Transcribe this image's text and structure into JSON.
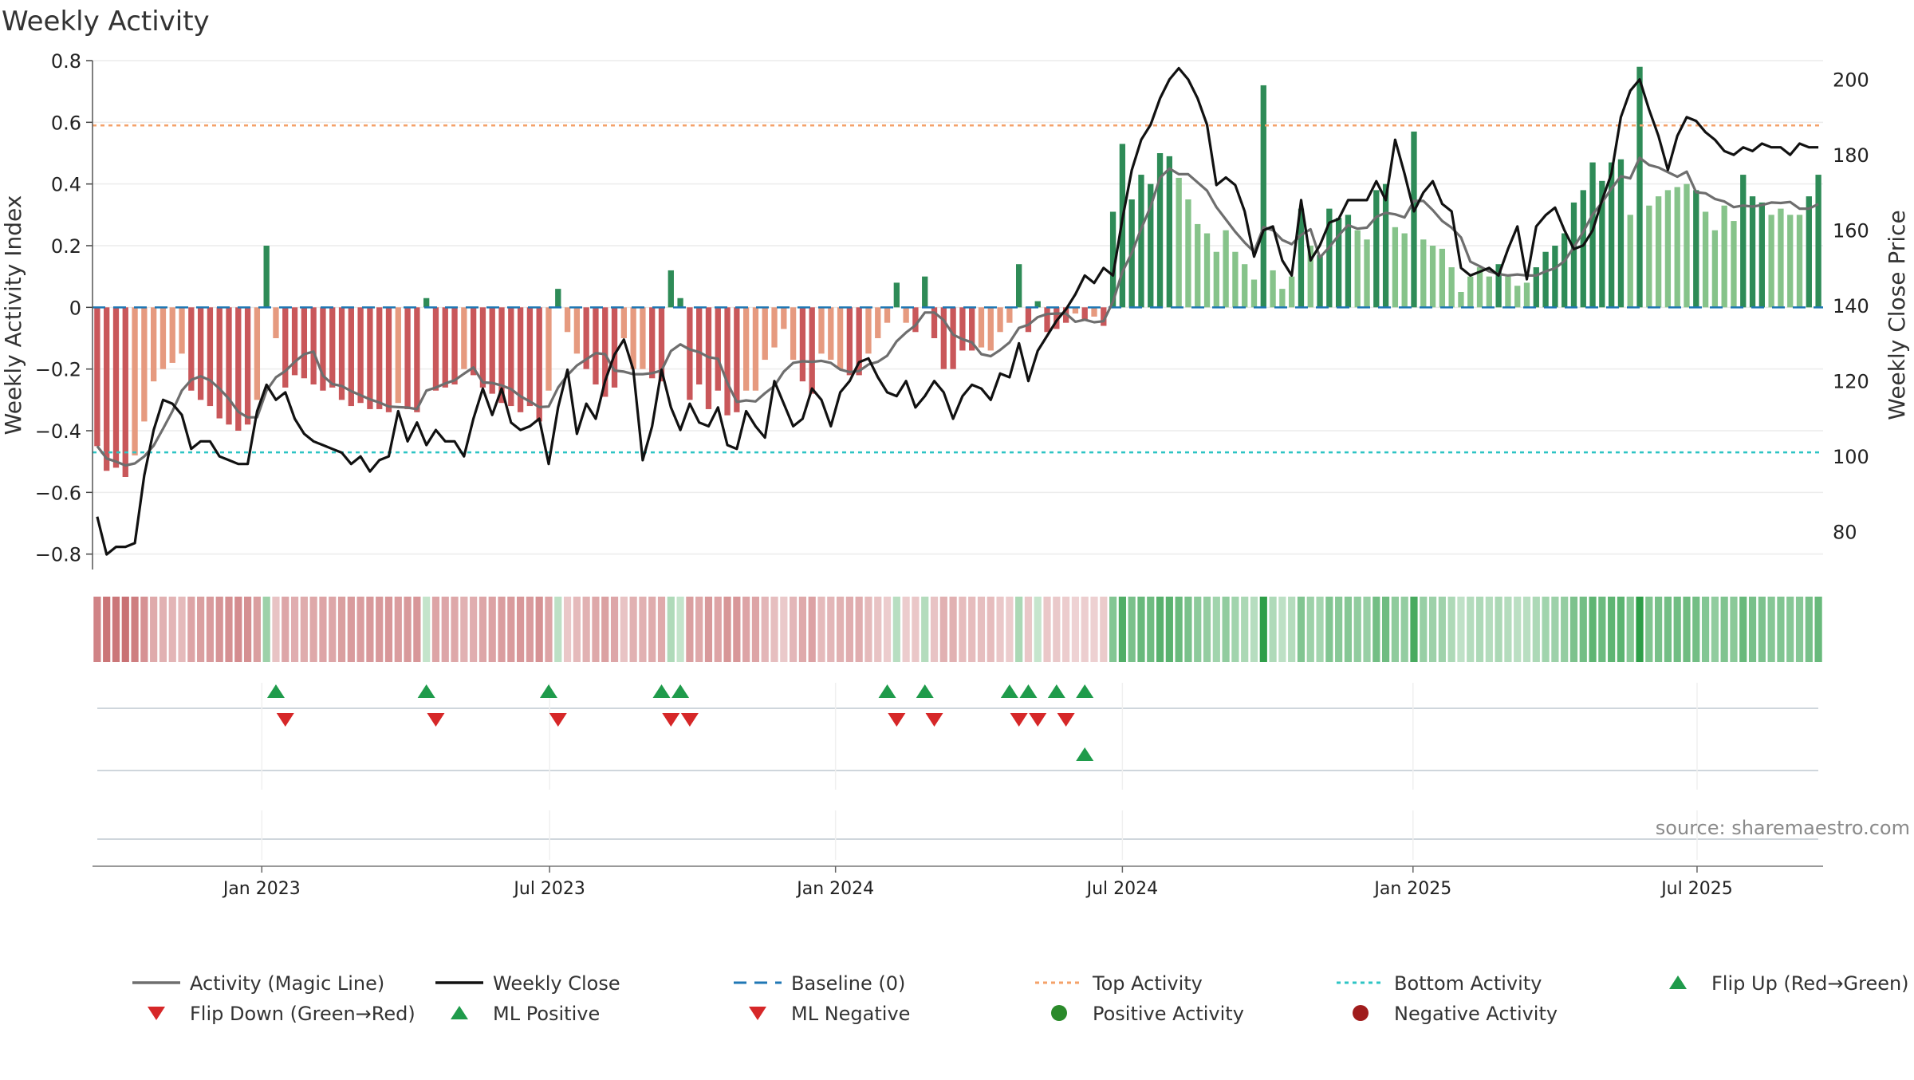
{
  "title": "Weekly Activity",
  "source_note": "source: sharemaestro.com",
  "colors": {
    "bar_pos_dark": "#2e8b57",
    "bar_pos_light": "#86c38a",
    "bar_neg_dark": "#c9575a",
    "bar_neg_light": "#e69a7f",
    "magic_line": "#6e6e6e",
    "close_line": "#111111",
    "baseline": "#1f77b4",
    "top_line": "#f4a26a",
    "bottom_line": "#2ec4c4",
    "flip_up": "#1f9b4b",
    "flip_down": "#d62728",
    "pos_dot": "#2a8a2a",
    "neg_dot": "#a01c1c",
    "grid": "#ececec",
    "track_line": "#cfd6dc"
  },
  "chart_data": {
    "type": "bar",
    "weeks": 184,
    "start_date": "2022-10-24",
    "left_axis": {
      "label": "Weekly Activity Index",
      "range": [
        -0.85,
        0.8
      ],
      "ticks": [
        "0.8",
        "0.6",
        "0.4",
        "0.2",
        "0",
        "−0.2",
        "−0.4",
        "−0.6",
        "−0.8"
      ],
      "tick_values": [
        0.8,
        0.6,
        0.4,
        0.2,
        0,
        -0.2,
        -0.4,
        -0.6,
        -0.8
      ]
    },
    "right_axis": {
      "label": "Weekly Close Price",
      "range": [
        70,
        205
      ],
      "ticks": [
        "200",
        "180",
        "160",
        "140",
        "120",
        "100",
        "80"
      ],
      "tick_values": [
        200,
        180,
        160,
        140,
        120,
        100,
        80
      ]
    },
    "x_axis": {
      "ticks": [
        "Jan 2023",
        "Jul 2023",
        "Jan 2024",
        "Jul 2024",
        "Jan 2025",
        "Jul 2025"
      ],
      "tick_weeks": [
        18,
        48.6,
        79,
        109.5,
        140.4,
        170.6
      ]
    },
    "top_activity": 0.59,
    "bottom_activity": -0.47,
    "baseline": 0,
    "activity_anchors": [
      [
        0,
        -0.45
      ],
      [
        1,
        -0.53
      ],
      [
        2,
        -0.52
      ],
      [
        3,
        -0.55
      ],
      [
        4,
        -0.48
      ],
      [
        5,
        -0.37
      ],
      [
        6,
        -0.24
      ],
      [
        7,
        -0.2
      ],
      [
        8,
        -0.18
      ],
      [
        9,
        -0.15
      ],
      [
        10,
        -0.27
      ],
      [
        11,
        -0.3
      ],
      [
        12,
        -0.32
      ],
      [
        13,
        -0.36
      ],
      [
        14,
        -0.38
      ],
      [
        15,
        -0.4
      ],
      [
        16,
        -0.38
      ],
      [
        17,
        -0.3
      ],
      [
        18,
        0.2
      ],
      [
        19,
        -0.1
      ],
      [
        20,
        -0.26
      ],
      [
        21,
        -0.22
      ],
      [
        22,
        -0.23
      ],
      [
        23,
        -0.25
      ],
      [
        24,
        -0.27
      ],
      [
        25,
        -0.26
      ],
      [
        26,
        -0.3
      ],
      [
        27,
        -0.32
      ],
      [
        28,
        -0.31
      ],
      [
        29,
        -0.33
      ],
      [
        30,
        -0.33
      ],
      [
        31,
        -0.34
      ],
      [
        32,
        -0.31
      ],
      [
        33,
        -0.33
      ],
      [
        34,
        -0.34
      ],
      [
        35,
        0.03
      ],
      [
        36,
        -0.27
      ],
      [
        37,
        -0.26
      ],
      [
        38,
        -0.25
      ],
      [
        39,
        -0.2
      ],
      [
        40,
        -0.22
      ],
      [
        41,
        -0.26
      ],
      [
        42,
        -0.28
      ],
      [
        43,
        -0.31
      ],
      [
        44,
        -0.32
      ],
      [
        45,
        -0.34
      ],
      [
        46,
        -0.32
      ],
      [
        47,
        -0.37
      ],
      [
        48,
        -0.27
      ],
      [
        49,
        0.06
      ],
      [
        50,
        -0.08
      ],
      [
        51,
        -0.15
      ],
      [
        52,
        -0.2
      ],
      [
        53,
        -0.25
      ],
      [
        54,
        -0.29
      ],
      [
        55,
        -0.26
      ],
      [
        56,
        -0.1
      ],
      [
        57,
        -0.2
      ],
      [
        58,
        -0.2
      ],
      [
        59,
        -0.23
      ],
      [
        60,
        -0.24
      ],
      [
        61,
        0.12
      ],
      [
        62,
        0.03
      ],
      [
        63,
        -0.3
      ],
      [
        64,
        -0.25
      ],
      [
        65,
        -0.33
      ],
      [
        66,
        -0.27
      ],
      [
        67,
        -0.35
      ],
      [
        68,
        -0.34
      ],
      [
        69,
        -0.27
      ],
      [
        70,
        -0.27
      ],
      [
        71,
        -0.17
      ],
      [
        72,
        -0.13
      ],
      [
        73,
        -0.07
      ],
      [
        74,
        -0.17
      ],
      [
        75,
        -0.24
      ],
      [
        76,
        -0.28
      ],
      [
        77,
        -0.15
      ],
      [
        78,
        -0.17
      ],
      [
        79,
        -0.2
      ],
      [
        80,
        -0.22
      ],
      [
        81,
        -0.22
      ],
      [
        82,
        -0.15
      ],
      [
        83,
        -0.1
      ],
      [
        84,
        -0.05
      ],
      [
        85,
        0.08
      ],
      [
        86,
        -0.05
      ],
      [
        87,
        -0.08
      ],
      [
        88,
        0.1
      ],
      [
        89,
        -0.1
      ],
      [
        90,
        -0.2
      ],
      [
        91,
        -0.2
      ],
      [
        92,
        -0.14
      ],
      [
        93,
        -0.14
      ],
      [
        94,
        -0.13
      ],
      [
        95,
        -0.14
      ],
      [
        96,
        -0.08
      ],
      [
        97,
        -0.05
      ],
      [
        98,
        0.14
      ],
      [
        99,
        -0.08
      ],
      [
        100,
        0.02
      ],
      [
        101,
        -0.08
      ],
      [
        102,
        -0.07
      ],
      [
        103,
        -0.05
      ],
      [
        104,
        -0.02
      ],
      [
        105,
        -0.04
      ],
      [
        106,
        -0.03
      ],
      [
        107,
        -0.06
      ],
      [
        108,
        0.31
      ],
      [
        109,
        0.53
      ],
      [
        110,
        0.35
      ],
      [
        111,
        0.43
      ],
      [
        112,
        0.4
      ],
      [
        113,
        0.5
      ],
      [
        114,
        0.49
      ],
      [
        115,
        0.42
      ],
      [
        116,
        0.35
      ],
      [
        117,
        0.27
      ],
      [
        118,
        0.24
      ],
      [
        119,
        0.18
      ],
      [
        120,
        0.25
      ],
      [
        121,
        0.18
      ],
      [
        122,
        0.14
      ],
      [
        123,
        0.09
      ],
      [
        124,
        0.72
      ],
      [
        125,
        0.12
      ],
      [
        126,
        0.06
      ],
      [
        127,
        0.1
      ],
      [
        128,
        0.32
      ],
      [
        129,
        0.2
      ],
      [
        130,
        0.17
      ],
      [
        131,
        0.32
      ],
      [
        132,
        0.29
      ],
      [
        133,
        0.3
      ],
      [
        134,
        0.25
      ],
      [
        135,
        0.22
      ],
      [
        136,
        0.38
      ],
      [
        137,
        0.4
      ],
      [
        138,
        0.26
      ],
      [
        139,
        0.24
      ],
      [
        140,
        0.57
      ],
      [
        141,
        0.22
      ],
      [
        142,
        0.2
      ],
      [
        143,
        0.19
      ],
      [
        144,
        0.13
      ],
      [
        145,
        0.05
      ],
      [
        146,
        0.1
      ],
      [
        147,
        0.13
      ],
      [
        148,
        0.1
      ],
      [
        149,
        0.14
      ],
      [
        150,
        0.1
      ],
      [
        151,
        0.07
      ],
      [
        152,
        0.08
      ],
      [
        153,
        0.13
      ],
      [
        154,
        0.18
      ],
      [
        155,
        0.2
      ],
      [
        156,
        0.24
      ],
      [
        157,
        0.34
      ],
      [
        158,
        0.38
      ],
      [
        159,
        0.47
      ],
      [
        160,
        0.41
      ],
      [
        161,
        0.47
      ],
      [
        162,
        0.48
      ],
      [
        163,
        0.3
      ],
      [
        164,
        0.78
      ],
      [
        165,
        0.33
      ],
      [
        166,
        0.36
      ],
      [
        167,
        0.38
      ],
      [
        168,
        0.39
      ],
      [
        169,
        0.4
      ],
      [
        170,
        0.38
      ],
      [
        171,
        0.31
      ],
      [
        172,
        0.25
      ],
      [
        173,
        0.33
      ],
      [
        174,
        0.28
      ],
      [
        175,
        0.43
      ],
      [
        176,
        0.36
      ],
      [
        177,
        0.34
      ],
      [
        178,
        0.3
      ],
      [
        179,
        0.32
      ],
      [
        180,
        0.3
      ],
      [
        181,
        0.3
      ],
      [
        182,
        0.36
      ],
      [
        183,
        0.43
      ]
    ],
    "close_anchors": [
      [
        0,
        84
      ],
      [
        1,
        74
      ],
      [
        2,
        76
      ],
      [
        3,
        76
      ],
      [
        4,
        77
      ],
      [
        5,
        95
      ],
      [
        6,
        107
      ],
      [
        7,
        115
      ],
      [
        8,
        114
      ],
      [
        9,
        111
      ],
      [
        10,
        102
      ],
      [
        11,
        104
      ],
      [
        12,
        104
      ],
      [
        13,
        100
      ],
      [
        14,
        99
      ],
      [
        15,
        98
      ],
      [
        16,
        98
      ],
      [
        17,
        112
      ],
      [
        18,
        119
      ],
      [
        19,
        115
      ],
      [
        20,
        117
      ],
      [
        21,
        110
      ],
      [
        22,
        106
      ],
      [
        23,
        104
      ],
      [
        24,
        103
      ],
      [
        25,
        102
      ],
      [
        26,
        101
      ],
      [
        27,
        98
      ],
      [
        28,
        100
      ],
      [
        29,
        96
      ],
      [
        30,
        99
      ],
      [
        31,
        100
      ],
      [
        32,
        112
      ],
      [
        33,
        104
      ],
      [
        34,
        109
      ],
      [
        35,
        103
      ],
      [
        36,
        107
      ],
      [
        37,
        104
      ],
      [
        38,
        104
      ],
      [
        39,
        100
      ],
      [
        40,
        110
      ],
      [
        41,
        118
      ],
      [
        42,
        111
      ],
      [
        43,
        118
      ],
      [
        44,
        109
      ],
      [
        45,
        107
      ],
      [
        46,
        108
      ],
      [
        47,
        110
      ],
      [
        48,
        98
      ],
      [
        49,
        113
      ],
      [
        50,
        123
      ],
      [
        51,
        106
      ],
      [
        52,
        114
      ],
      [
        53,
        110
      ],
      [
        54,
        120
      ],
      [
        55,
        127
      ],
      [
        56,
        131
      ],
      [
        57,
        123
      ],
      [
        58,
        99
      ],
      [
        59,
        108
      ],
      [
        60,
        123
      ],
      [
        61,
        113
      ],
      [
        62,
        107
      ],
      [
        63,
        114
      ],
      [
        64,
        109
      ],
      [
        65,
        108
      ],
      [
        66,
        113
      ],
      [
        67,
        103
      ],
      [
        68,
        102
      ],
      [
        69,
        112
      ],
      [
        70,
        108
      ],
      [
        71,
        105
      ],
      [
        72,
        120
      ],
      [
        73,
        114
      ],
      [
        74,
        108
      ],
      [
        75,
        110
      ],
      [
        76,
        118
      ],
      [
        77,
        115
      ],
      [
        78,
        108
      ],
      [
        79,
        117
      ],
      [
        80,
        120
      ],
      [
        81,
        125
      ],
      [
        82,
        126
      ],
      [
        83,
        121
      ],
      [
        84,
        117
      ],
      [
        85,
        116
      ],
      [
        86,
        120
      ],
      [
        87,
        113
      ],
      [
        88,
        116
      ],
      [
        89,
        120
      ],
      [
        90,
        117
      ],
      [
        91,
        110
      ],
      [
        92,
        116
      ],
      [
        93,
        119
      ],
      [
        94,
        118
      ],
      [
        95,
        115
      ],
      [
        96,
        122
      ],
      [
        97,
        121
      ],
      [
        98,
        130
      ],
      [
        99,
        120
      ],
      [
        100,
        128
      ],
      [
        101,
        132
      ],
      [
        102,
        136
      ],
      [
        103,
        139
      ],
      [
        104,
        143
      ],
      [
        105,
        148
      ],
      [
        106,
        146
      ],
      [
        107,
        150
      ],
      [
        108,
        148
      ],
      [
        109,
        163
      ],
      [
        110,
        176
      ],
      [
        111,
        184
      ],
      [
        112,
        188
      ],
      [
        113,
        195
      ],
      [
        114,
        200
      ],
      [
        115,
        203
      ],
      [
        116,
        200
      ],
      [
        117,
        195
      ],
      [
        118,
        188
      ],
      [
        119,
        172
      ],
      [
        120,
        174
      ],
      [
        121,
        172
      ],
      [
        122,
        165
      ],
      [
        123,
        153
      ],
      [
        124,
        160
      ],
      [
        125,
        161
      ],
      [
        126,
        152
      ],
      [
        127,
        148
      ],
      [
        128,
        168
      ],
      [
        129,
        152
      ],
      [
        130,
        156
      ],
      [
        131,
        162
      ],
      [
        132,
        163
      ],
      [
        133,
        168
      ],
      [
        134,
        168
      ],
      [
        135,
        168
      ],
      [
        136,
        173
      ],
      [
        137,
        168
      ],
      [
        138,
        184
      ],
      [
        139,
        175
      ],
      [
        140,
        165
      ],
      [
        141,
        170
      ],
      [
        142,
        173
      ],
      [
        143,
        167
      ],
      [
        144,
        165
      ],
      [
        145,
        150
      ],
      [
        146,
        148
      ],
      [
        147,
        149
      ],
      [
        148,
        150
      ],
      [
        149,
        148
      ],
      [
        150,
        155
      ],
      [
        151,
        161
      ],
      [
        152,
        147
      ],
      [
        153,
        161
      ],
      [
        154,
        164
      ],
      [
        155,
        166
      ],
      [
        156,
        160
      ],
      [
        157,
        155
      ],
      [
        158,
        156
      ],
      [
        159,
        160
      ],
      [
        160,
        168
      ],
      [
        161,
        175
      ],
      [
        162,
        190
      ],
      [
        163,
        197
      ],
      [
        164,
        200
      ],
      [
        165,
        192
      ],
      [
        166,
        185
      ],
      [
        167,
        176
      ],
      [
        168,
        185
      ],
      [
        169,
        190
      ],
      [
        170,
        189
      ],
      [
        171,
        186
      ],
      [
        172,
        184
      ],
      [
        173,
        181
      ],
      [
        174,
        180
      ],
      [
        175,
        182
      ],
      [
        176,
        181
      ],
      [
        177,
        183
      ],
      [
        178,
        182
      ],
      [
        179,
        182
      ],
      [
        180,
        180
      ],
      [
        181,
        183
      ],
      [
        182,
        182
      ],
      [
        183,
        182
      ]
    ],
    "flip_up_weeks": [
      19,
      35,
      48,
      60,
      62,
      84,
      88,
      97,
      99,
      102,
      105
    ],
    "flip_down_weeks": [
      20,
      36,
      49,
      61,
      63,
      85,
      89,
      98,
      100,
      103
    ],
    "ml_positive_weeks": [
      105
    ],
    "ml_negative_weeks": [],
    "positive_activity_weeks": [],
    "negative_activity_weeks": []
  },
  "legend": [
    {
      "label": "Activity (Magic Line)",
      "symbol": "solid-line",
      "color": "#6e6e6e"
    },
    {
      "label": "Weekly Close",
      "symbol": "solid-line",
      "color": "#111111"
    },
    {
      "label": "Baseline (0)",
      "symbol": "dashed-line",
      "color": "#1f77b4"
    },
    {
      "label": "Top Activity",
      "symbol": "dotted-line",
      "color": "#f4a26a"
    },
    {
      "label": "Bottom Activity",
      "symbol": "dotted-line",
      "color": "#2ec4c4"
    },
    {
      "label": "Flip Up (Red→Green)",
      "symbol": "triangle-up",
      "color": "#1f9b4b"
    },
    {
      "label": "Flip Down (Green→Red)",
      "symbol": "triangle-down",
      "color": "#d62728"
    },
    {
      "label": "ML Positive",
      "symbol": "triangle-up",
      "color": "#1f9b4b"
    },
    {
      "label": "ML Negative",
      "symbol": "triangle-down",
      "color": "#d62728"
    },
    {
      "label": "Positive Activity",
      "symbol": "dot",
      "color": "#2a8a2a"
    },
    {
      "label": "Negative Activity",
      "symbol": "dot",
      "color": "#a01c1c"
    }
  ]
}
